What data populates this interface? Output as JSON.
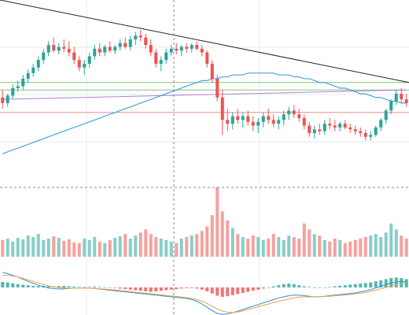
{
  "colors": {
    "up": "#26a69a",
    "down": "#ef5350",
    "grid": "#e6e9ee",
    "crosshair": "#8a8a8a",
    "trendline": "#222222",
    "ma_line": "#4aa3df",
    "level_green": "#7bc77b",
    "level_purple": "#b37fd6",
    "level_red": "#f08a8a",
    "macd_line": "#2f8fd8",
    "signal_line": "#f0a040"
  },
  "chart_data": [
    {
      "type": "candlestick",
      "panel": "price",
      "ylim": [
        0,
        1
      ],
      "candles_open_high_low_close": [
        [
          0.48,
          0.52,
          0.42,
          0.45
        ],
        [
          0.45,
          0.5,
          0.43,
          0.49
        ],
        [
          0.49,
          0.55,
          0.47,
          0.53
        ],
        [
          0.53,
          0.57,
          0.51,
          0.54
        ],
        [
          0.54,
          0.6,
          0.52,
          0.58
        ],
        [
          0.58,
          0.63,
          0.56,
          0.61
        ],
        [
          0.61,
          0.66,
          0.59,
          0.64
        ],
        [
          0.64,
          0.7,
          0.62,
          0.68
        ],
        [
          0.68,
          0.74,
          0.66,
          0.72
        ],
        [
          0.72,
          0.78,
          0.7,
          0.76
        ],
        [
          0.76,
          0.8,
          0.72,
          0.73
        ],
        [
          0.73,
          0.77,
          0.71,
          0.75
        ],
        [
          0.75,
          0.79,
          0.72,
          0.74
        ],
        [
          0.74,
          0.78,
          0.7,
          0.72
        ],
        [
          0.72,
          0.75,
          0.66,
          0.68
        ],
        [
          0.68,
          0.7,
          0.62,
          0.64
        ],
        [
          0.64,
          0.68,
          0.6,
          0.66
        ],
        [
          0.66,
          0.72,
          0.64,
          0.7
        ],
        [
          0.7,
          0.76,
          0.68,
          0.74
        ],
        [
          0.74,
          0.77,
          0.7,
          0.72
        ],
        [
          0.72,
          0.76,
          0.7,
          0.75
        ],
        [
          0.75,
          0.78,
          0.72,
          0.73
        ],
        [
          0.73,
          0.76,
          0.71,
          0.75
        ],
        [
          0.75,
          0.79,
          0.73,
          0.77
        ],
        [
          0.77,
          0.8,
          0.74,
          0.75
        ],
        [
          0.75,
          0.81,
          0.73,
          0.79
        ],
        [
          0.79,
          0.83,
          0.76,
          0.81
        ],
        [
          0.81,
          0.84,
          0.78,
          0.8
        ],
        [
          0.8,
          0.82,
          0.74,
          0.76
        ],
        [
          0.76,
          0.79,
          0.7,
          0.72
        ],
        [
          0.72,
          0.74,
          0.64,
          0.66
        ],
        [
          0.66,
          0.7,
          0.62,
          0.68
        ],
        [
          0.68,
          0.74,
          0.66,
          0.72
        ],
        [
          0.72,
          0.76,
          0.7,
          0.74
        ],
        [
          0.74,
          0.77,
          0.71,
          0.73
        ],
        [
          0.73,
          0.76,
          0.7,
          0.75
        ],
        [
          0.75,
          0.77,
          0.72,
          0.74
        ],
        [
          0.74,
          0.77,
          0.72,
          0.76
        ],
        [
          0.76,
          0.78,
          0.73,
          0.74
        ],
        [
          0.74,
          0.76,
          0.7,
          0.72
        ],
        [
          0.72,
          0.73,
          0.64,
          0.66
        ],
        [
          0.66,
          0.68,
          0.56,
          0.58
        ],
        [
          0.58,
          0.6,
          0.46,
          0.48
        ],
        [
          0.48,
          0.52,
          0.28,
          0.36
        ],
        [
          0.36,
          0.42,
          0.3,
          0.34
        ],
        [
          0.34,
          0.4,
          0.31,
          0.38
        ],
        [
          0.38,
          0.42,
          0.34,
          0.36
        ],
        [
          0.36,
          0.4,
          0.32,
          0.38
        ],
        [
          0.38,
          0.41,
          0.33,
          0.35
        ],
        [
          0.35,
          0.38,
          0.3,
          0.33
        ],
        [
          0.33,
          0.37,
          0.29,
          0.35
        ],
        [
          0.35,
          0.4,
          0.32,
          0.38
        ],
        [
          0.38,
          0.42,
          0.34,
          0.36
        ],
        [
          0.36,
          0.39,
          0.32,
          0.34
        ],
        [
          0.34,
          0.38,
          0.31,
          0.36
        ],
        [
          0.36,
          0.41,
          0.33,
          0.39
        ],
        [
          0.39,
          0.43,
          0.36,
          0.41
        ],
        [
          0.41,
          0.44,
          0.37,
          0.39
        ],
        [
          0.39,
          0.42,
          0.35,
          0.37
        ],
        [
          0.37,
          0.39,
          0.31,
          0.33
        ],
        [
          0.33,
          0.35,
          0.27,
          0.29
        ],
        [
          0.29,
          0.33,
          0.26,
          0.31
        ],
        [
          0.31,
          0.34,
          0.28,
          0.3
        ],
        [
          0.3,
          0.36,
          0.28,
          0.34
        ],
        [
          0.34,
          0.37,
          0.31,
          0.33
        ],
        [
          0.33,
          0.36,
          0.3,
          0.32
        ],
        [
          0.32,
          0.35,
          0.3,
          0.34
        ],
        [
          0.34,
          0.36,
          0.31,
          0.32
        ],
        [
          0.32,
          0.34,
          0.29,
          0.31
        ],
        [
          0.31,
          0.33,
          0.28,
          0.3
        ],
        [
          0.3,
          0.32,
          0.27,
          0.29
        ],
        [
          0.29,
          0.31,
          0.25,
          0.27
        ],
        [
          0.27,
          0.3,
          0.25,
          0.28
        ],
        [
          0.28,
          0.33,
          0.27,
          0.32
        ],
        [
          0.32,
          0.37,
          0.3,
          0.36
        ],
        [
          0.36,
          0.42,
          0.34,
          0.41
        ],
        [
          0.41,
          0.47,
          0.39,
          0.46
        ],
        [
          0.46,
          0.52,
          0.44,
          0.5
        ],
        [
          0.5,
          0.53,
          0.45,
          0.47
        ],
        [
          0.47,
          0.5,
          0.43,
          0.45
        ]
      ],
      "moving_average": [
        0.18,
        0.19,
        0.2,
        0.21,
        0.22,
        0.23,
        0.24,
        0.25,
        0.26,
        0.27,
        0.28,
        0.29,
        0.3,
        0.31,
        0.32,
        0.33,
        0.34,
        0.35,
        0.36,
        0.37,
        0.38,
        0.39,
        0.4,
        0.41,
        0.42,
        0.43,
        0.44,
        0.45,
        0.46,
        0.47,
        0.48,
        0.49,
        0.5,
        0.51,
        0.52,
        0.53,
        0.54,
        0.55,
        0.56,
        0.57,
        0.57,
        0.58,
        0.58,
        0.59,
        0.59,
        0.6,
        0.6,
        0.6,
        0.61,
        0.61,
        0.61,
        0.61,
        0.61,
        0.61,
        0.6,
        0.6,
        0.6,
        0.59,
        0.59,
        0.58,
        0.58,
        0.57,
        0.56,
        0.56,
        0.55,
        0.54,
        0.53,
        0.53,
        0.52,
        0.51,
        0.5,
        0.5,
        0.49,
        0.48,
        0.48,
        0.47,
        0.46,
        0.46,
        0.45,
        0.45
      ],
      "trendline": [
        [
          0,
          1.0
        ],
        [
          79,
          0.56
        ]
      ],
      "horizontal_levels": [
        {
          "kind": "green",
          "y": 0.56
        },
        {
          "kind": "green",
          "y": 0.52
        },
        {
          "kind": "red",
          "y": 0.4
        }
      ],
      "sloped_level": [
        [
          0,
          0.47
        ],
        [
          79,
          0.52
        ]
      ]
    },
    {
      "type": "bar",
      "panel": "volume",
      "ylim": [
        0,
        1
      ],
      "values": [
        0.22,
        0.24,
        0.2,
        0.25,
        0.23,
        0.28,
        0.26,
        0.3,
        0.22,
        0.24,
        0.27,
        0.25,
        0.21,
        0.23,
        0.19,
        0.18,
        0.24,
        0.22,
        0.26,
        0.2,
        0.18,
        0.22,
        0.25,
        0.27,
        0.3,
        0.24,
        0.28,
        0.32,
        0.36,
        0.3,
        0.26,
        0.24,
        0.22,
        0.2,
        0.18,
        0.24,
        0.26,
        0.28,
        0.3,
        0.34,
        0.4,
        0.55,
        0.92,
        0.6,
        0.48,
        0.38,
        0.3,
        0.26,
        0.24,
        0.28,
        0.26,
        0.22,
        0.24,
        0.3,
        0.26,
        0.22,
        0.28,
        0.26,
        0.24,
        0.44,
        0.36,
        0.3,
        0.28,
        0.22,
        0.2,
        0.24,
        0.22,
        0.18,
        0.2,
        0.22,
        0.24,
        0.26,
        0.28,
        0.3,
        0.26,
        0.32,
        0.44,
        0.36,
        0.28,
        0.24
      ]
    },
    {
      "type": "bar",
      "panel": "macd",
      "ylim": [
        -1,
        1
      ],
      "values": [
        0.2,
        0.18,
        0.15,
        0.12,
        0.1,
        0.08,
        0.06,
        0.05,
        0.06,
        0.05,
        0.04,
        0.05,
        0.06,
        0.04,
        0.03,
        0.02,
        0.01,
        0.02,
        0.03,
        0.02,
        0.01,
        0.0,
        -0.02,
        -0.04,
        -0.06,
        -0.08,
        -0.1,
        -0.12,
        -0.14,
        -0.16,
        -0.14,
        -0.12,
        -0.1,
        -0.08,
        -0.06,
        -0.04,
        -0.03,
        -0.02,
        -0.04,
        -0.08,
        -0.14,
        -0.22,
        -0.3,
        -0.34,
        -0.32,
        -0.28,
        -0.24,
        -0.2,
        -0.16,
        -0.12,
        -0.08,
        -0.04,
        0.0,
        0.04,
        0.08,
        0.12,
        0.14,
        0.12,
        0.08,
        0.04,
        0.02,
        0.0,
        -0.02,
        0.0,
        0.02,
        0.04,
        0.06,
        0.08,
        0.1,
        0.12,
        0.14,
        0.16,
        0.18,
        0.22,
        0.26,
        0.3,
        0.34,
        0.36,
        0.34,
        0.3
      ],
      "macd_line": [
        0.55,
        0.5,
        0.44,
        0.38,
        0.3,
        0.22,
        0.15,
        0.08,
        0.03,
        -0.02,
        -0.04,
        -0.06,
        -0.05,
        -0.04,
        -0.03,
        -0.03,
        -0.02,
        -0.03,
        -0.04,
        -0.06,
        -0.08,
        -0.1,
        -0.12,
        -0.14,
        -0.16,
        -0.18,
        -0.2,
        -0.22,
        -0.24,
        -0.26,
        -0.28,
        -0.3,
        -0.32,
        -0.34,
        -0.36,
        -0.38,
        -0.4,
        -0.44,
        -0.5,
        -0.6,
        -0.72,
        -0.84,
        -0.94,
        -0.98,
        -0.96,
        -0.92,
        -0.86,
        -0.8,
        -0.74,
        -0.68,
        -0.62,
        -0.56,
        -0.5,
        -0.44,
        -0.38,
        -0.34,
        -0.3,
        -0.28,
        -0.28,
        -0.3,
        -0.32,
        -0.34,
        -0.34,
        -0.32,
        -0.3,
        -0.28,
        -0.26,
        -0.24,
        -0.22,
        -0.2,
        -0.16,
        -0.12,
        -0.08,
        -0.02,
        0.04,
        0.1,
        0.16,
        0.2,
        0.22,
        0.2
      ],
      "signal_line": [
        0.45,
        0.44,
        0.42,
        0.38,
        0.33,
        0.27,
        0.22,
        0.16,
        0.11,
        0.06,
        0.02,
        -0.01,
        -0.02,
        -0.03,
        -0.03,
        -0.03,
        -0.03,
        -0.03,
        -0.04,
        -0.05,
        -0.06,
        -0.08,
        -0.09,
        -0.11,
        -0.13,
        -0.15,
        -0.17,
        -0.19,
        -0.21,
        -0.23,
        -0.25,
        -0.27,
        -0.29,
        -0.31,
        -0.33,
        -0.35,
        -0.37,
        -0.4,
        -0.44,
        -0.5,
        -0.58,
        -0.68,
        -0.78,
        -0.86,
        -0.9,
        -0.91,
        -0.89,
        -0.85,
        -0.8,
        -0.75,
        -0.7,
        -0.65,
        -0.6,
        -0.55,
        -0.5,
        -0.46,
        -0.42,
        -0.38,
        -0.35,
        -0.34,
        -0.34,
        -0.34,
        -0.34,
        -0.33,
        -0.32,
        -0.3,
        -0.29,
        -0.27,
        -0.25,
        -0.23,
        -0.21,
        -0.18,
        -0.14,
        -0.1,
        -0.05,
        0.0,
        0.06,
        0.11,
        0.15,
        0.17
      ]
    }
  ]
}
